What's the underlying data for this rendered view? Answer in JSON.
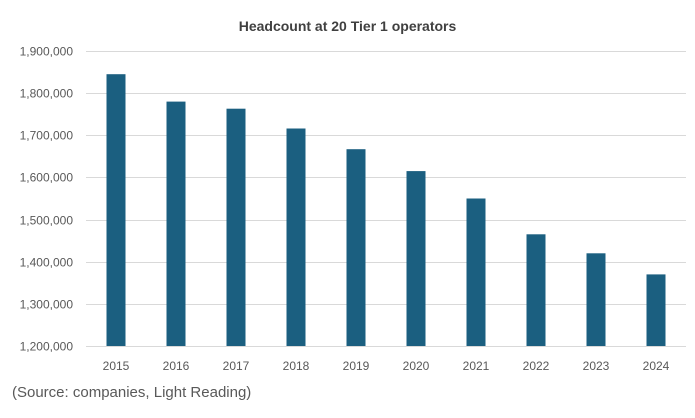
{
  "chart_data": {
    "type": "bar",
    "title": "Headcount at 20 Tier 1 operators",
    "categories": [
      "2015",
      "2016",
      "2017",
      "2018",
      "2019",
      "2020",
      "2021",
      "2022",
      "2023",
      "2024"
    ],
    "values": [
      1845000,
      1780000,
      1763000,
      1716000,
      1667000,
      1615000,
      1550000,
      1465000,
      1420000,
      1370000
    ],
    "xlabel": "",
    "ylabel": "",
    "ylim": [
      1200000,
      1900000
    ],
    "yticks": [
      1200000,
      1300000,
      1400000,
      1500000,
      1600000,
      1700000,
      1800000,
      1900000
    ],
    "ytick_labels": [
      "1,200,000",
      "1,300,000",
      "1,400,000",
      "1,500,000",
      "1,600,000",
      "1,700,000",
      "1,800,000",
      "1,900,000"
    ],
    "grid": true,
    "legend": "none",
    "bar_color": "#1b5f80",
    "grid_color": "#d9d9d9",
    "axis_label_color": "#595959",
    "title_color": "#404040"
  },
  "source_note": "(Source: companies, Light Reading)"
}
